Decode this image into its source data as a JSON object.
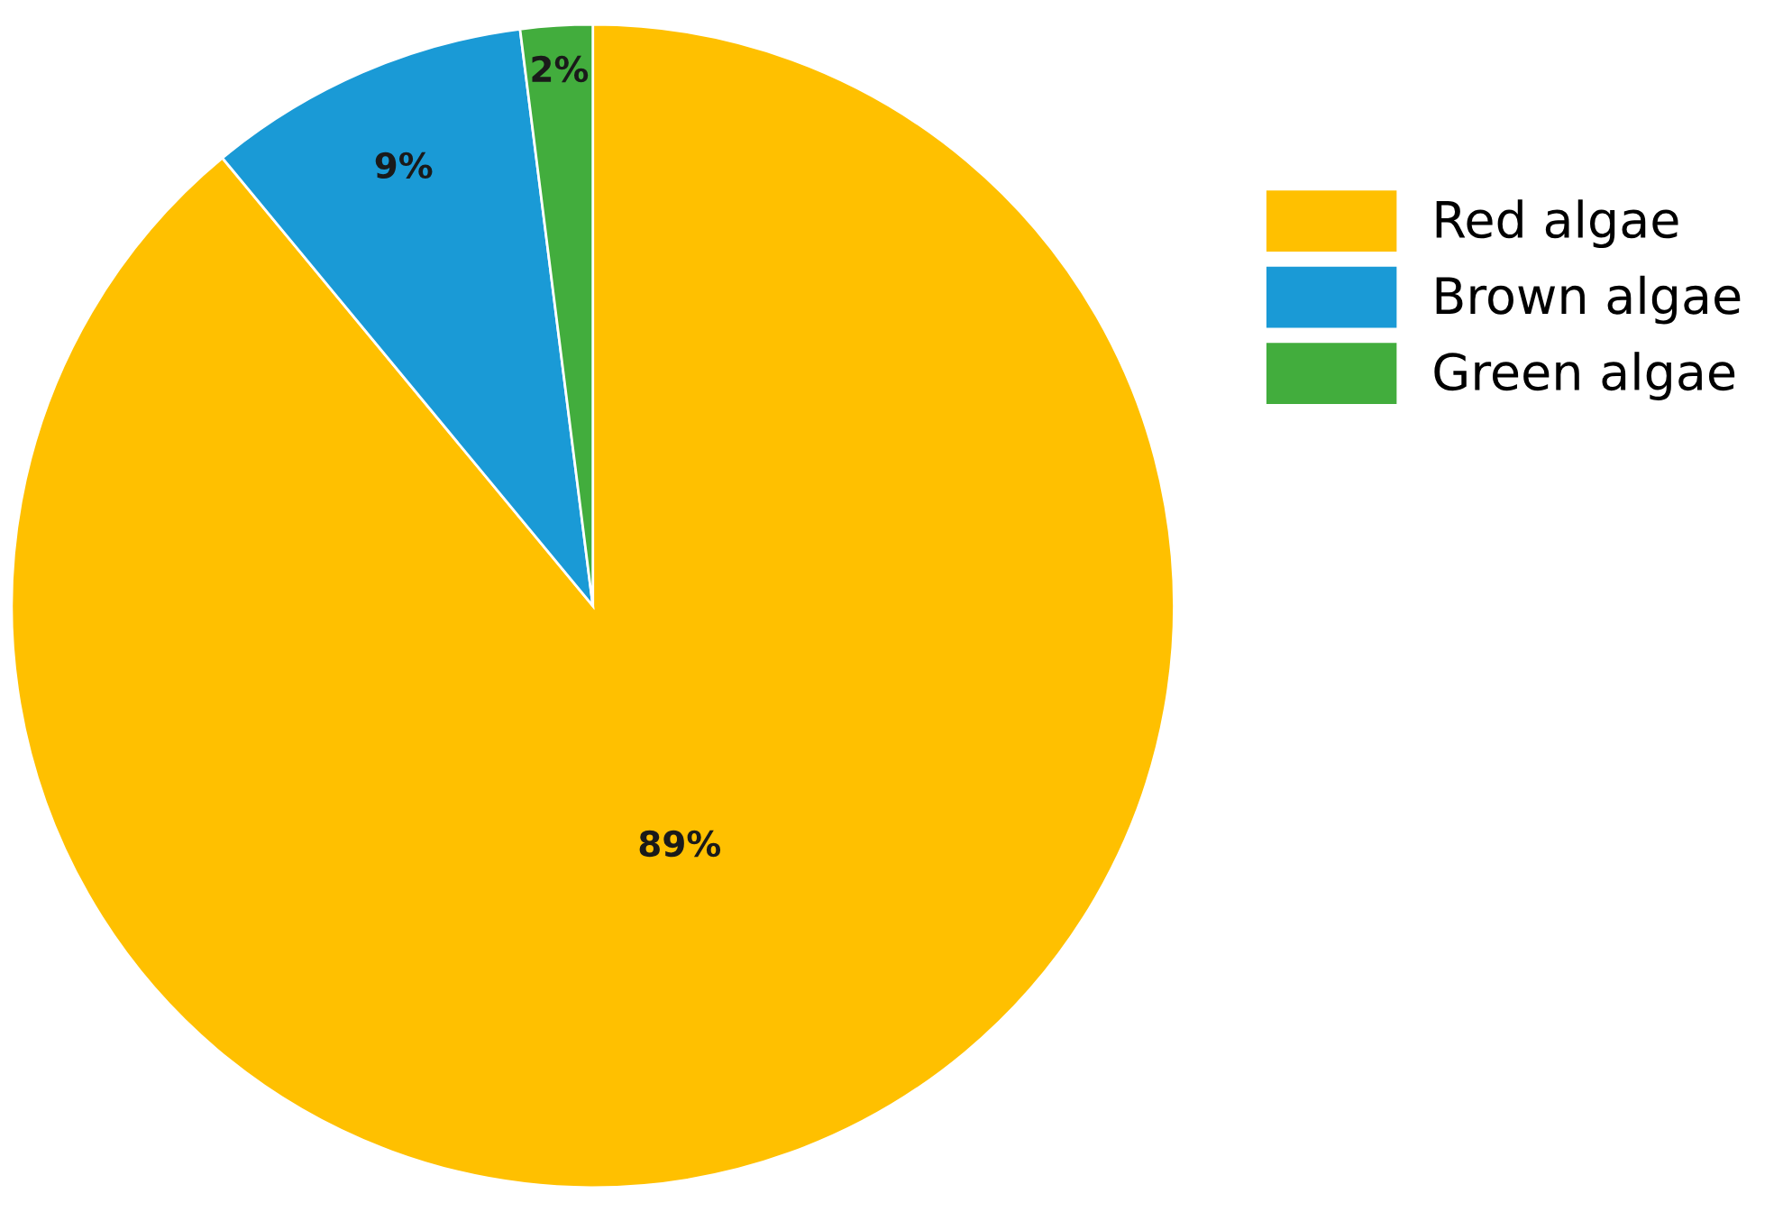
{
  "chart_data": {
    "type": "pie",
    "categories": [
      "Red algae",
      "Brown algae",
      "Green algae"
    ],
    "values": [
      89,
      9,
      2
    ],
    "colors": [
      "#ffc000",
      "#1a9ad6",
      "#42ad3d"
    ],
    "value_labels": [
      "89%",
      "9%",
      "2%"
    ],
    "legend": "top right"
  }
}
